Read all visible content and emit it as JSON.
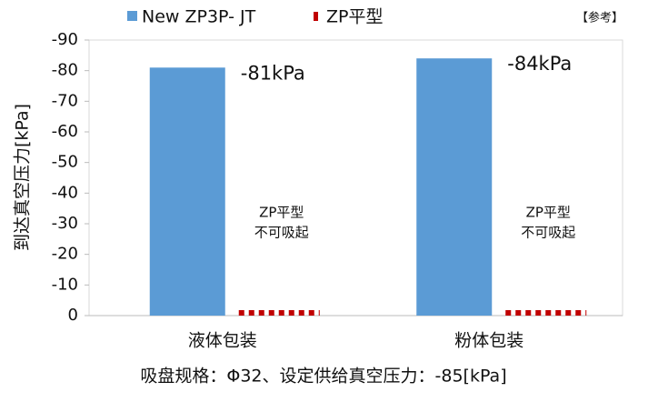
{
  "chart_data": {
    "type": "bar",
    "title": "吸盘规格：Φ32、设定供给真空压力：-85[kPa]",
    "note": "【参考】",
    "y_label": "到达真空压力[kPa]",
    "categories": [
      "液体包装",
      "粉体包装"
    ],
    "series": [
      {
        "name": "New ZP3P- JT",
        "color": "#5b9bd5",
        "values": [
          -81,
          -84
        ],
        "value_labels": [
          "-81kPa",
          "-84kPa"
        ]
      },
      {
        "name": "ZP平型",
        "color": "#c00000",
        "values": [
          0,
          0
        ]
      }
    ],
    "annotations": [
      [
        "ZP平型",
        "不可吸起"
      ],
      [
        "ZP平型",
        "不可吸起"
      ]
    ],
    "ylim": [
      0,
      -90
    ],
    "yticks": [
      -90,
      -80,
      -70,
      -60,
      -50,
      -40,
      -30,
      -20,
      -10,
      0
    ],
    "grid": false
  }
}
